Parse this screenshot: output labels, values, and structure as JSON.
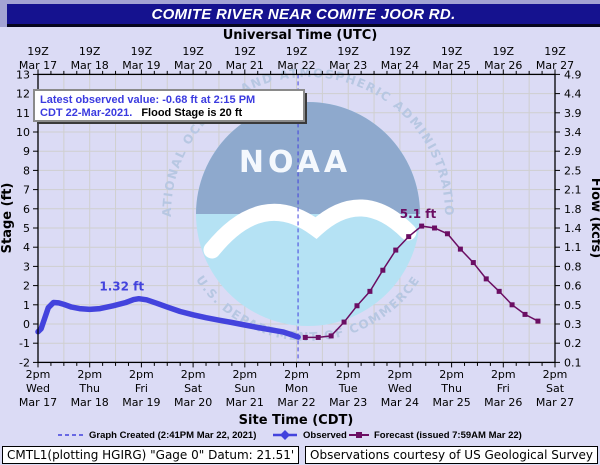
{
  "header": {
    "title": "COMITE RIVER NEAR COMITE JOOR RD."
  },
  "axis_titles": {
    "top": "Universal Time (UTC)",
    "bottom": "Site Time (CDT)",
    "left": "Stage (ft)",
    "right": "Flow (kcfs)"
  },
  "annotation": {
    "line1": "Latest observed value: -0.68 ft at 2:15 PM",
    "line2_blue": "CDT 22-Mar-2021.",
    "line2_black": "Flood Stage is 20 ft"
  },
  "watermark": {
    "arc_top": "NATIONAL OCEANIC AND ATMOSPHERIC ADMINISTRATION",
    "arc_bottom": "U.S. DEPARTMENT OF COMMERCE",
    "center": "NOAA"
  },
  "legend": {
    "graph_created": "Graph Created (2:41PM Mar 22, 2021)",
    "observed": "Observed",
    "forecast": "Forecast (issued 7:59AM Mar 22)"
  },
  "footer": {
    "left": "CMTL1(plotting HGIRG) \"Gage 0\" Datum: 21.51'",
    "right": "Observations courtesy of US Geological Survey"
  },
  "colors": {
    "observed": "#4343dd",
    "forecast": "#6b0e63",
    "annotation_blue": "#3b3be0",
    "grid": "#cfcfcf",
    "title_bg": "#15128f",
    "page_bg": "#dbdbf5",
    "watermark_ring": "#b7c7e2",
    "watermark_upper": "#8ea9cd",
    "watermark_lower": "#b5e2f4"
  },
  "chart_data": {
    "type": "line",
    "title": "COMITE RIVER NEAR COMITE JOOR RD.",
    "x_axis": {
      "top_tick": "19Z",
      "bottom_tick": "2pm",
      "dates": [
        "Mar 17",
        "Mar 18",
        "Mar 19",
        "Mar 20",
        "Mar 21",
        "Mar 22",
        "Mar 23",
        "Mar 24",
        "Mar 25",
        "Mar 26",
        "Mar 27"
      ],
      "weekdays": [
        "Wed",
        "Thu",
        "Fri",
        "Sat",
        "Sun",
        "Mon",
        "Tue",
        "Wed",
        "Thu",
        "Fri",
        "Sat"
      ],
      "span_days": 10,
      "x_unit": "days since Mar 17 2pm CDT"
    },
    "y_axis": {
      "stage_ticks": [
        13,
        12,
        11,
        10,
        9,
        8,
        7,
        6,
        5,
        4,
        3,
        2,
        1,
        0,
        -1,
        -2
      ],
      "flow_tick_labels": [
        "4.9",
        "4.4",
        "3.9",
        "3.4",
        "2.9",
        "2.5",
        "2.1",
        "1.8",
        "1.4",
        "1.1",
        "0.8",
        "0.6",
        "0.5",
        "0.3",
        "0.2",
        "0.1"
      ],
      "ylim": [
        -2,
        13
      ]
    },
    "flood_stage_ft": 20,
    "now_line_d": 5.03,
    "grid": true,
    "series": [
      {
        "name": "Observed",
        "color_key": "observed",
        "points": [
          [
            0,
            -0.4
          ],
          [
            0.06,
            -0.25
          ],
          [
            0.13,
            0.3
          ],
          [
            0.2,
            0.85
          ],
          [
            0.3,
            1.12
          ],
          [
            0.4,
            1.1
          ],
          [
            0.5,
            1.02
          ],
          [
            0.65,
            0.88
          ],
          [
            0.8,
            0.8
          ],
          [
            1.0,
            0.76
          ],
          [
            1.2,
            0.8
          ],
          [
            1.45,
            0.95
          ],
          [
            1.7,
            1.12
          ],
          [
            1.85,
            1.27
          ],
          [
            1.95,
            1.32
          ],
          [
            2.1,
            1.26
          ],
          [
            2.3,
            1.08
          ],
          [
            2.5,
            0.88
          ],
          [
            2.75,
            0.65
          ],
          [
            3.0,
            0.48
          ],
          [
            3.25,
            0.33
          ],
          [
            3.5,
            0.2
          ],
          [
            3.75,
            0.08
          ],
          [
            4.0,
            -0.05
          ],
          [
            4.25,
            -0.18
          ],
          [
            4.5,
            -0.3
          ],
          [
            4.75,
            -0.42
          ],
          [
            4.9,
            -0.55
          ],
          [
            5.03,
            -0.68
          ]
        ]
      },
      {
        "name": "Forecast",
        "color_key": "forecast",
        "points": [
          [
            5.17,
            -0.7
          ],
          [
            5.42,
            -0.7
          ],
          [
            5.67,
            -0.62
          ],
          [
            5.92,
            0.1
          ],
          [
            6.17,
            0.95
          ],
          [
            6.42,
            1.7
          ],
          [
            6.67,
            2.8
          ],
          [
            6.92,
            3.85
          ],
          [
            7.17,
            4.55
          ],
          [
            7.42,
            5.1
          ],
          [
            7.67,
            5.0
          ],
          [
            7.92,
            4.7
          ],
          [
            8.17,
            3.9
          ],
          [
            8.42,
            3.2
          ],
          [
            8.67,
            2.35
          ],
          [
            8.92,
            1.7
          ],
          [
            9.17,
            1.0
          ],
          [
            9.42,
            0.5
          ],
          [
            9.67,
            0.15
          ]
        ]
      }
    ],
    "point_labels": [
      {
        "text": "1.32 ft",
        "d": 1.62,
        "stage": 1.32,
        "series": "observed"
      },
      {
        "text": "5.1 ft",
        "d": 7.35,
        "stage": 5.1,
        "series": "forecast"
      }
    ]
  }
}
